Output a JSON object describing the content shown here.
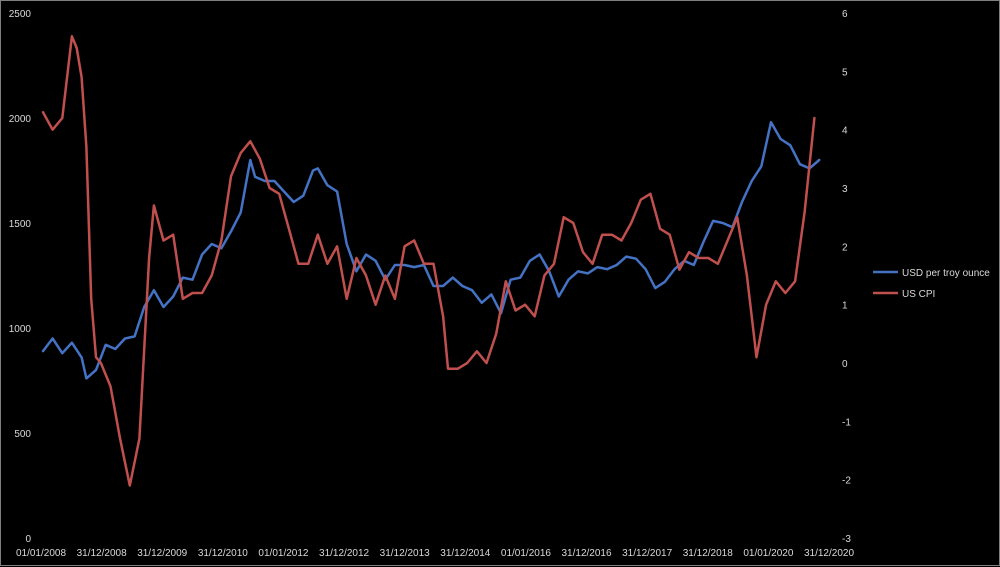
{
  "chart_data": {
    "type": "line",
    "title": "",
    "x_tick_labels": [
      "01/01/2008",
      "31/12/2008",
      "31/12/2009",
      "31/12/2010",
      "01/01/2012",
      "31/12/2012",
      "31/12/2013",
      "31/12/2014",
      "01/01/2016",
      "31/12/2016",
      "31/12/2017",
      "31/12/2018",
      "01/01/2020",
      "31/12/2020"
    ],
    "x_range": [
      "2008-01-01",
      "2021-07-01"
    ],
    "y_left": {
      "range": [
        0,
        2500
      ],
      "ticks": [
        "0",
        "500",
        "1000",
        "1500",
        "2000",
        "2500"
      ]
    },
    "y_right": {
      "range": [
        -3,
        6
      ],
      "ticks": [
        "-3",
        "-2",
        "-1",
        "0",
        "1",
        "2",
        "3",
        "4",
        "5",
        "6"
      ]
    },
    "grid": false,
    "legend_position": "right",
    "colors": {
      "gold": "#4472c4",
      "cpi": "#c0504d",
      "text": "#d9d9d9",
      "border": "#7f7f7f"
    },
    "series": [
      {
        "name": "USD per troy ounce",
        "axis": "left",
        "x": [
          "2008-01",
          "2008-03",
          "2008-05",
          "2008-07",
          "2008-09",
          "2008-10",
          "2008-12",
          "2009-02",
          "2009-04",
          "2009-06",
          "2009-08",
          "2009-10",
          "2009-12",
          "2010-02",
          "2010-04",
          "2010-06",
          "2010-08",
          "2010-10",
          "2010-12",
          "2011-02",
          "2011-04",
          "2011-06",
          "2011-08",
          "2011-09",
          "2011-11",
          "2012-01",
          "2012-03",
          "2012-05",
          "2012-07",
          "2012-09",
          "2012-10",
          "2012-12",
          "2013-02",
          "2013-04",
          "2013-06",
          "2013-08",
          "2013-10",
          "2013-12",
          "2014-02",
          "2014-04",
          "2014-06",
          "2014-08",
          "2014-10",
          "2014-12",
          "2015-02",
          "2015-04",
          "2015-06",
          "2015-08",
          "2015-10",
          "2015-12",
          "2016-02",
          "2016-04",
          "2016-06",
          "2016-08",
          "2016-10",
          "2016-12",
          "2017-02",
          "2017-04",
          "2017-06",
          "2017-08",
          "2017-10",
          "2017-12",
          "2018-02",
          "2018-04",
          "2018-06",
          "2018-08",
          "2018-10",
          "2018-12",
          "2019-02",
          "2019-04",
          "2019-06",
          "2019-08",
          "2019-10",
          "2019-12",
          "2020-02",
          "2020-04",
          "2020-06",
          "2020-08",
          "2020-10",
          "2020-12",
          "2021-02",
          "2021-04",
          "2021-06"
        ],
        "values": [
          890,
          950,
          880,
          930,
          860,
          760,
          800,
          920,
          900,
          950,
          960,
          1100,
          1180,
          1100,
          1150,
          1240,
          1230,
          1350,
          1400,
          1380,
          1460,
          1550,
          1800,
          1720,
          1700,
          1700,
          1650,
          1600,
          1630,
          1750,
          1760,
          1680,
          1650,
          1400,
          1270,
          1350,
          1320,
          1230,
          1300,
          1300,
          1290,
          1300,
          1200,
          1200,
          1240,
          1200,
          1180,
          1120,
          1160,
          1070,
          1230,
          1240,
          1320,
          1350,
          1270,
          1150,
          1230,
          1270,
          1260,
          1290,
          1280,
          1300,
          1340,
          1330,
          1280,
          1190,
          1220,
          1280,
          1320,
          1300,
          1410,
          1510,
          1500,
          1480,
          1600,
          1700,
          1770,
          1980,
          1900,
          1870,
          1780,
          1760,
          1800
        ],
        "data_labels": []
      },
      {
        "name": "US CPI",
        "axis": "right",
        "x": [
          "2008-01",
          "2008-03",
          "2008-05",
          "2008-07",
          "2008-08",
          "2008-09",
          "2008-10",
          "2008-11",
          "2008-12",
          "2009-01",
          "2009-03",
          "2009-05",
          "2009-07",
          "2009-09",
          "2009-11",
          "2009-12",
          "2010-02",
          "2010-04",
          "2010-06",
          "2010-08",
          "2010-10",
          "2010-12",
          "2011-02",
          "2011-04",
          "2011-06",
          "2011-08",
          "2011-10",
          "2011-12",
          "2012-02",
          "2012-04",
          "2012-06",
          "2012-08",
          "2012-10",
          "2012-12",
          "2013-02",
          "2013-04",
          "2013-06",
          "2013-08",
          "2013-10",
          "2013-12",
          "2014-02",
          "2014-04",
          "2014-06",
          "2014-08",
          "2014-10",
          "2014-12",
          "2015-01",
          "2015-03",
          "2015-05",
          "2015-07",
          "2015-09",
          "2015-11",
          "2016-01",
          "2016-03",
          "2016-05",
          "2016-07",
          "2016-09",
          "2016-11",
          "2017-01",
          "2017-03",
          "2017-05",
          "2017-07",
          "2017-09",
          "2017-11",
          "2018-01",
          "2018-03",
          "2018-05",
          "2018-07",
          "2018-09",
          "2018-11",
          "2019-01",
          "2019-03",
          "2019-05",
          "2019-07",
          "2019-09",
          "2019-11",
          "2020-01",
          "2020-03",
          "2020-05",
          "2020-07",
          "2020-09",
          "2020-11",
          "2021-01",
          "2021-03",
          "2021-05"
        ],
        "values": [
          4.3,
          4.0,
          4.2,
          5.6,
          5.4,
          4.9,
          3.7,
          1.1,
          0.1,
          0.0,
          -0.4,
          -1.3,
          -2.1,
          -1.3,
          1.8,
          2.7,
          2.1,
          2.2,
          1.1,
          1.2,
          1.2,
          1.5,
          2.1,
          3.2,
          3.6,
          3.8,
          3.5,
          3.0,
          2.9,
          2.3,
          1.7,
          1.7,
          2.2,
          1.7,
          2.0,
          1.1,
          1.8,
          1.5,
          1.0,
          1.5,
          1.1,
          2.0,
          2.1,
          1.7,
          1.7,
          0.8,
          -0.1,
          -0.1,
          0.0,
          0.2,
          0.0,
          0.5,
          1.4,
          0.9,
          1.0,
          0.8,
          1.5,
          1.7,
          2.5,
          2.4,
          1.9,
          1.7,
          2.2,
          2.2,
          2.1,
          2.4,
          2.8,
          2.9,
          2.3,
          2.2,
          1.6,
          1.9,
          1.8,
          1.8,
          1.7,
          2.1,
          2.5,
          1.5,
          0.1,
          1.0,
          1.4,
          1.2,
          1.4,
          2.6,
          4.2
        ]
      }
    ]
  }
}
